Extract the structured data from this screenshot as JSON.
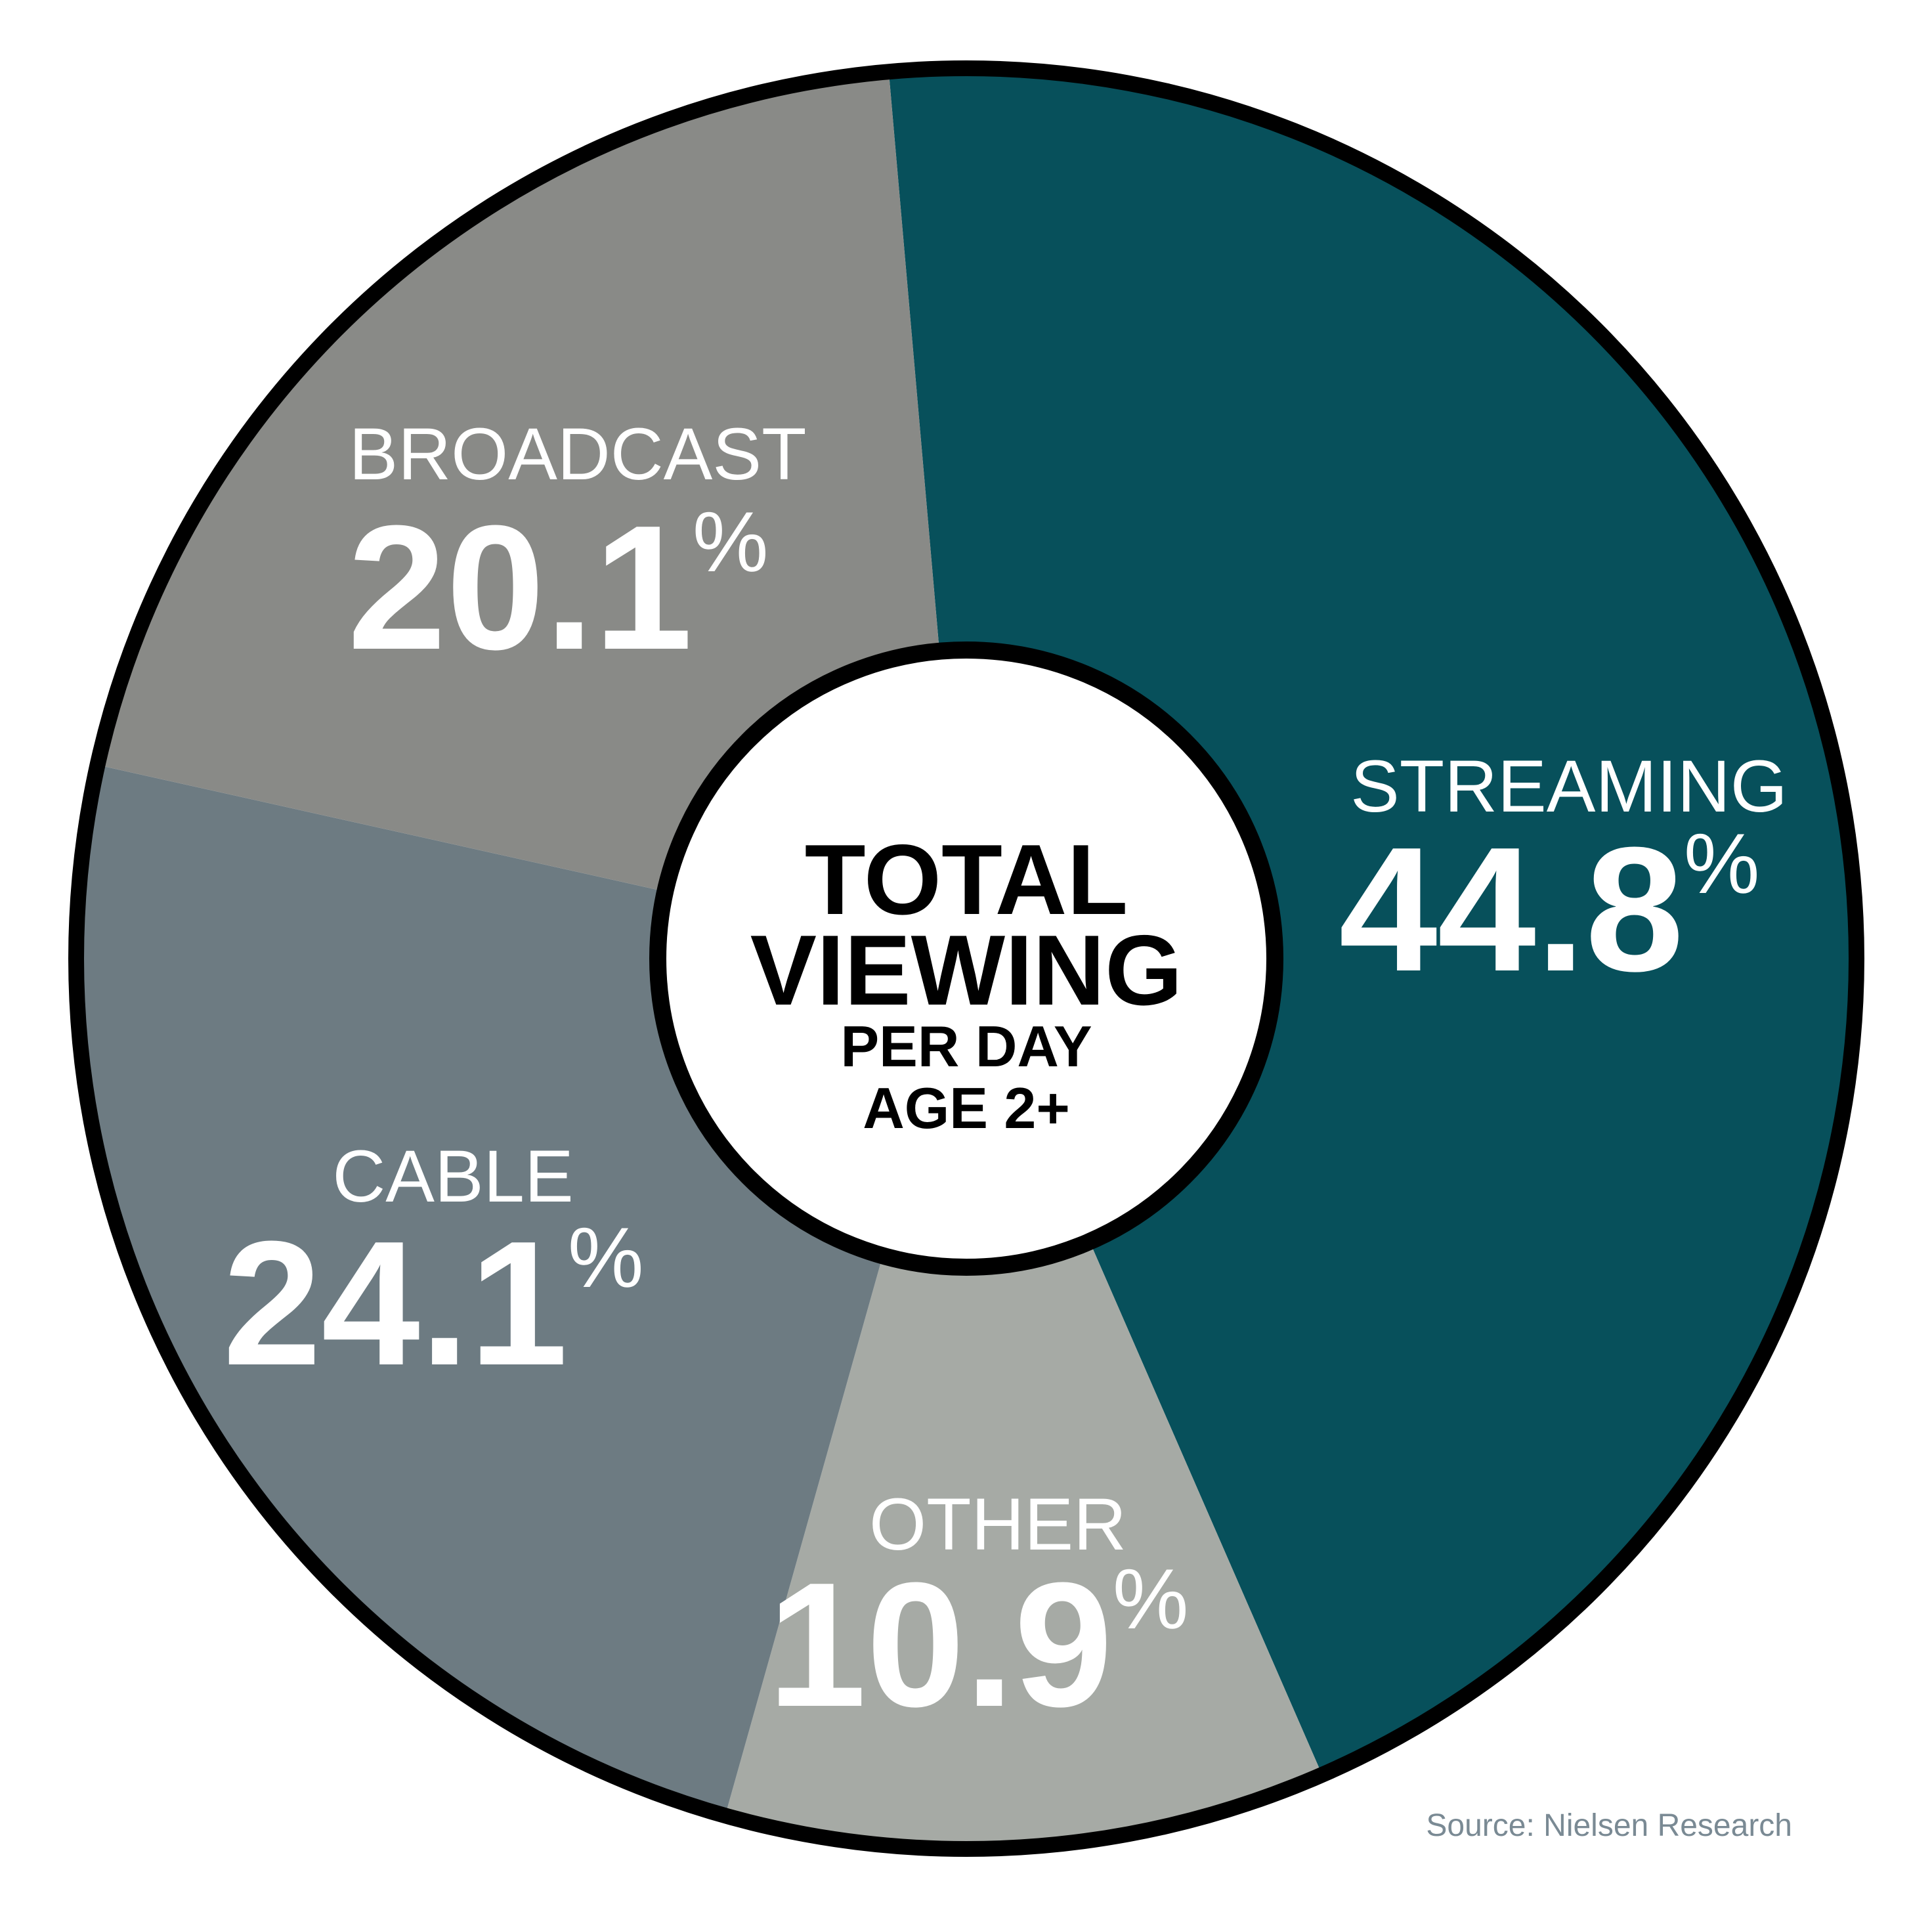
{
  "chart_data": {
    "type": "pie",
    "center_label": {
      "line1": "TOTAL",
      "line2": "VIEWING",
      "line3": "PER DAY",
      "line4": "AGE 2+"
    },
    "slices": [
      {
        "label": "STREAMING",
        "value": 44.8,
        "display": "44.8",
        "unit": "%",
        "color": "#07505b"
      },
      {
        "label": "OTHER",
        "value": 10.9,
        "display": "10.9",
        "unit": "%",
        "color": "#a6aaa5"
      },
      {
        "label": "CABLE",
        "value": 24.1,
        "display": "24.1",
        "unit": "%",
        "color": "#6d7b82"
      },
      {
        "label": "BROADCAST",
        "value": 20.1,
        "display": "20.1",
        "unit": "%",
        "color": "#898a87"
      }
    ],
    "start_angle_deg": -5,
    "direction": "clockwise",
    "source": "Source:  Nielsen Research"
  }
}
